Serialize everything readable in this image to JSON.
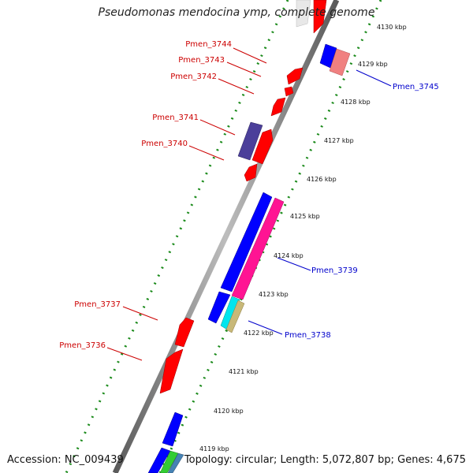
{
  "title": "Pseudomonas mendocina ymp, complete genome",
  "footer": {
    "accession": "Accession: NC_009439",
    "topology": "Topology: circular; Length: 5,072,807 bp; Genes: 4,675"
  },
  "scale": {
    "unit": "kbp",
    "ticks": [
      "4119 kbp",
      "4120 kbp",
      "4121 kbp",
      "4122 kbp",
      "4123 kbp",
      "4124 kbp",
      "4125 kbp",
      "4126 kbp",
      "4127 kbp",
      "4128 kbp",
      "4129 kbp",
      "4130 kbp"
    ]
  },
  "colors": {
    "backbone": "#8a8a8a",
    "track_dots": "#1a8a1a",
    "minus_label": "#cc0000",
    "plus_label": "#0000cc",
    "gene_red": "#ff0000",
    "gene_blue": "#0000ff",
    "gene_pink": "#ff1493",
    "gene_purple": "#4b3f9a",
    "gene_cyan": "#00e5ee",
    "gene_khaki": "#c8b878",
    "gene_salmon": "#f08080"
  },
  "gene_labels_minus": [
    {
      "id": "Pmen_3744"
    },
    {
      "id": "Pmen_3743"
    },
    {
      "id": "Pmen_3742"
    },
    {
      "id": "Pmen_3741"
    },
    {
      "id": "Pmen_3740"
    },
    {
      "id": "Pmen_3737"
    },
    {
      "id": "Pmen_3736"
    }
  ],
  "gene_labels_plus": [
    {
      "id": "Pmen_3745"
    },
    {
      "id": "Pmen_3739"
    },
    {
      "id": "Pmen_3738"
    }
  ]
}
